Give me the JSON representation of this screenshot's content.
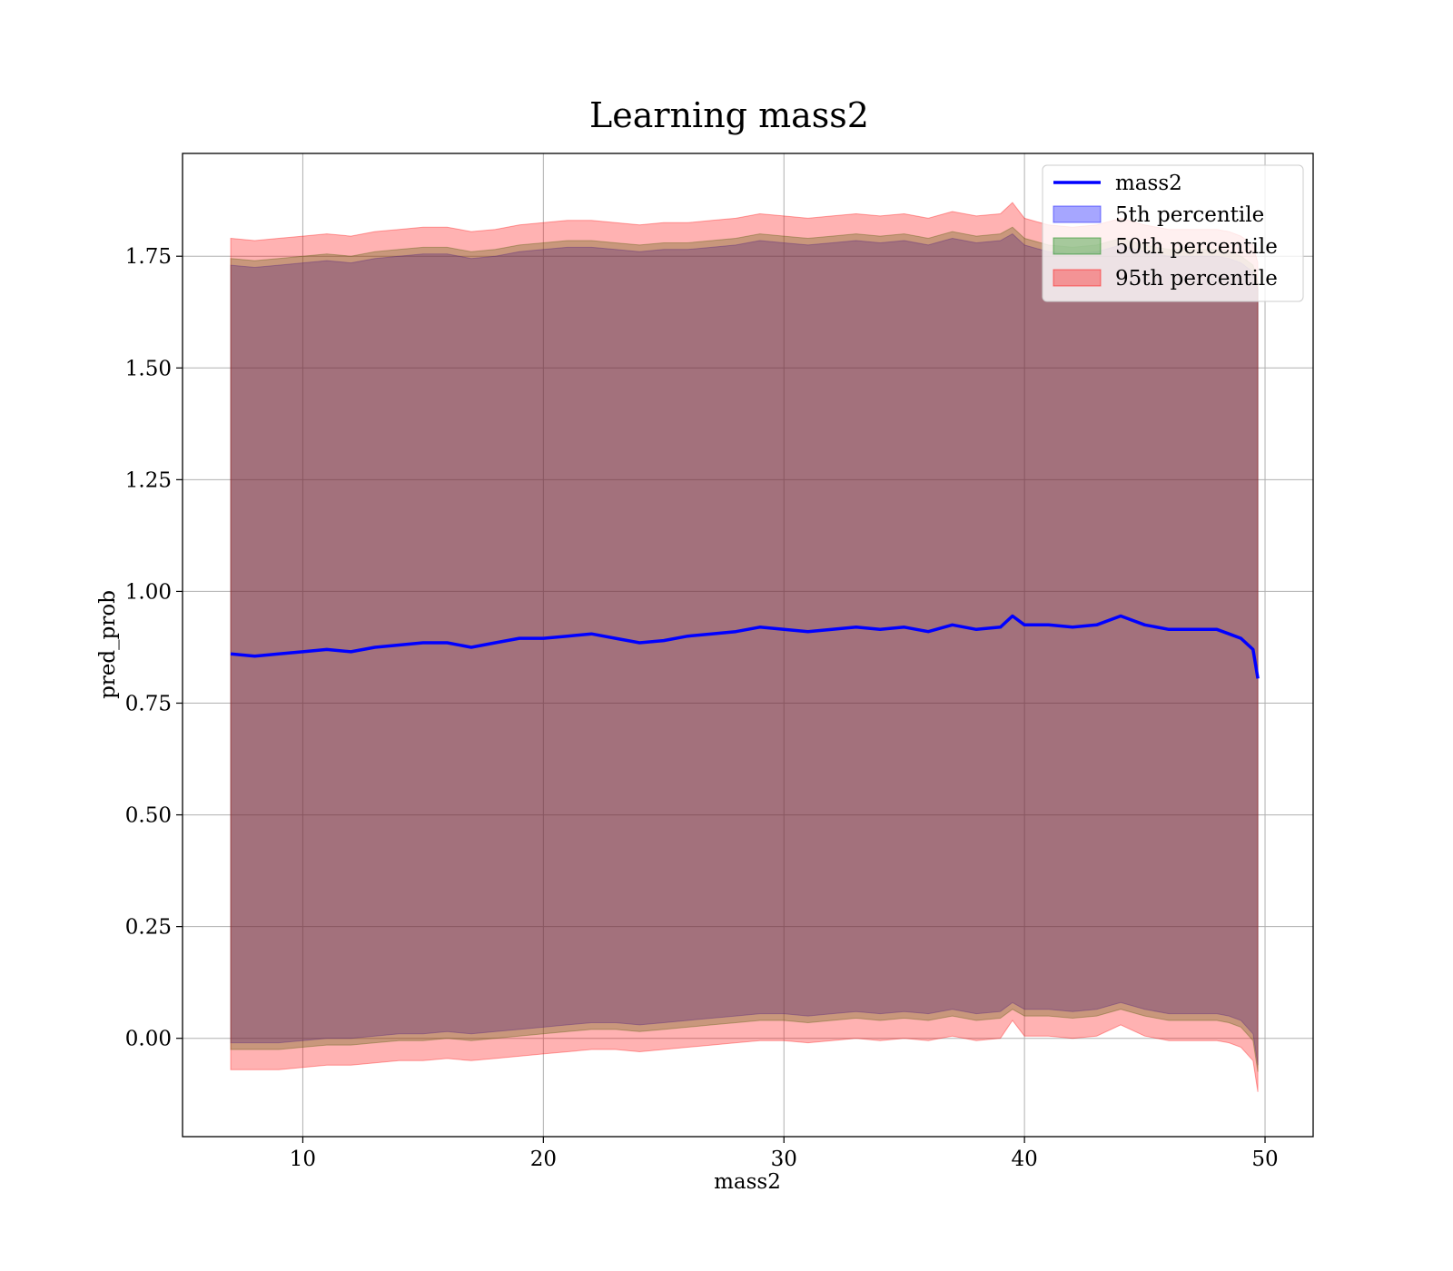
{
  "chart_data": {
    "type": "area",
    "title": "Learning mass2",
    "xlabel": "mass2",
    "ylabel": "pred_prob",
    "xlim": [
      5.0,
      52.0
    ],
    "ylim": [
      -0.22,
      1.98
    ],
    "grid": true,
    "legend_position": "top-right",
    "x_ticks": [
      {
        "value": 10,
        "label": "10"
      },
      {
        "value": 20,
        "label": "20"
      },
      {
        "value": 30,
        "label": "30"
      },
      {
        "value": 40,
        "label": "40"
      },
      {
        "value": 50,
        "label": "50"
      }
    ],
    "y_ticks": [
      {
        "value": 0.0,
        "label": "0.00"
      },
      {
        "value": 0.25,
        "label": "0.25"
      },
      {
        "value": 0.5,
        "label": "0.50"
      },
      {
        "value": 0.75,
        "label": "0.75"
      },
      {
        "value": 1.0,
        "label": "1.00"
      },
      {
        "value": 1.25,
        "label": "1.25"
      },
      {
        "value": 1.5,
        "label": "1.50"
      },
      {
        "value": 1.75,
        "label": "1.75"
      }
    ],
    "x": [
      7.0,
      8.0,
      9.0,
      10.0,
      11.0,
      12.0,
      13.0,
      14.0,
      15.0,
      16.0,
      17.0,
      18.0,
      19.0,
      20.0,
      21.0,
      22.0,
      23.0,
      24.0,
      25.0,
      26.0,
      27.0,
      28.0,
      29.0,
      30.0,
      31.0,
      32.0,
      33.0,
      34.0,
      35.0,
      36.0,
      37.0,
      38.0,
      39.0,
      39.5,
      40.0,
      41.0,
      42.0,
      43.0,
      44.0,
      45.0,
      46.0,
      47.0,
      48.0,
      48.5,
      49.0,
      49.5,
      49.7
    ],
    "series": [
      {
        "name": "mass2",
        "kind": "line",
        "color": "#0000ff",
        "values": [
          0.86,
          0.855,
          0.86,
          0.865,
          0.87,
          0.865,
          0.875,
          0.88,
          0.885,
          0.885,
          0.875,
          0.885,
          0.895,
          0.895,
          0.9,
          0.905,
          0.895,
          0.885,
          0.89,
          0.9,
          0.905,
          0.91,
          0.92,
          0.915,
          0.91,
          0.915,
          0.92,
          0.915,
          0.92,
          0.91,
          0.925,
          0.915,
          0.92,
          0.945,
          0.925,
          0.925,
          0.92,
          0.925,
          0.945,
          0.925,
          0.915,
          0.915,
          0.915,
          0.905,
          0.895,
          0.87,
          0.805
        ]
      },
      {
        "name": "5th percentile",
        "kind": "band",
        "color": "#0000ff",
        "lower": [
          -0.01,
          -0.01,
          -0.01,
          -0.005,
          0.0,
          0.0,
          0.005,
          0.01,
          0.01,
          0.015,
          0.01,
          0.015,
          0.02,
          0.025,
          0.03,
          0.035,
          0.035,
          0.03,
          0.035,
          0.04,
          0.045,
          0.05,
          0.055,
          0.055,
          0.05,
          0.055,
          0.06,
          0.055,
          0.06,
          0.055,
          0.065,
          0.055,
          0.06,
          0.08,
          0.065,
          0.065,
          0.06,
          0.065,
          0.08,
          0.065,
          0.055,
          0.055,
          0.055,
          0.05,
          0.04,
          0.01,
          -0.06
        ],
        "upper": [
          1.73,
          1.725,
          1.73,
          1.735,
          1.74,
          1.735,
          1.745,
          1.75,
          1.755,
          1.755,
          1.745,
          1.75,
          1.76,
          1.765,
          1.77,
          1.77,
          1.765,
          1.76,
          1.765,
          1.765,
          1.77,
          1.775,
          1.785,
          1.78,
          1.775,
          1.78,
          1.785,
          1.78,
          1.785,
          1.775,
          1.79,
          1.78,
          1.785,
          1.8,
          1.775,
          1.76,
          1.755,
          1.76,
          1.775,
          1.76,
          1.75,
          1.75,
          1.75,
          1.745,
          1.735,
          1.715,
          1.675
        ]
      },
      {
        "name": "50th percentile",
        "kind": "band",
        "color": "#008000",
        "lower": [
          -0.025,
          -0.025,
          -0.025,
          -0.02,
          -0.015,
          -0.015,
          -0.01,
          -0.005,
          -0.005,
          0.0,
          -0.005,
          0.0,
          0.005,
          0.01,
          0.015,
          0.02,
          0.02,
          0.015,
          0.02,
          0.025,
          0.03,
          0.035,
          0.04,
          0.04,
          0.035,
          0.04,
          0.045,
          0.04,
          0.045,
          0.04,
          0.05,
          0.04,
          0.045,
          0.065,
          0.05,
          0.05,
          0.045,
          0.05,
          0.065,
          0.05,
          0.04,
          0.04,
          0.04,
          0.035,
          0.025,
          -0.005,
          -0.075
        ],
        "upper": [
          1.745,
          1.74,
          1.745,
          1.75,
          1.755,
          1.75,
          1.76,
          1.765,
          1.77,
          1.77,
          1.76,
          1.765,
          1.775,
          1.78,
          1.785,
          1.785,
          1.78,
          1.775,
          1.78,
          1.78,
          1.785,
          1.79,
          1.8,
          1.795,
          1.79,
          1.795,
          1.8,
          1.795,
          1.8,
          1.79,
          1.805,
          1.795,
          1.8,
          1.815,
          1.79,
          1.775,
          1.77,
          1.775,
          1.79,
          1.775,
          1.765,
          1.765,
          1.765,
          1.76,
          1.75,
          1.73,
          1.69
        ]
      },
      {
        "name": "95th percentile",
        "kind": "band",
        "color": "#ff0000",
        "lower": [
          -0.07,
          -0.07,
          -0.07,
          -0.065,
          -0.06,
          -0.06,
          -0.055,
          -0.05,
          -0.05,
          -0.045,
          -0.05,
          -0.045,
          -0.04,
          -0.035,
          -0.03,
          -0.025,
          -0.025,
          -0.03,
          -0.025,
          -0.02,
          -0.015,
          -0.01,
          -0.005,
          -0.005,
          -0.01,
          -0.005,
          0.0,
          -0.005,
          0.0,
          -0.005,
          0.005,
          -0.005,
          0.0,
          0.04,
          0.005,
          0.005,
          0.0,
          0.005,
          0.03,
          0.005,
          -0.005,
          -0.005,
          -0.005,
          -0.01,
          -0.02,
          -0.05,
          -0.12
        ],
        "upper": [
          1.79,
          1.785,
          1.79,
          1.795,
          1.8,
          1.795,
          1.805,
          1.81,
          1.815,
          1.815,
          1.805,
          1.81,
          1.82,
          1.825,
          1.83,
          1.83,
          1.825,
          1.82,
          1.825,
          1.825,
          1.83,
          1.835,
          1.845,
          1.84,
          1.835,
          1.84,
          1.845,
          1.84,
          1.845,
          1.835,
          1.85,
          1.84,
          1.845,
          1.87,
          1.835,
          1.82,
          1.815,
          1.82,
          1.835,
          1.82,
          1.81,
          1.81,
          1.81,
          1.805,
          1.795,
          1.775,
          1.735
        ]
      }
    ]
  }
}
